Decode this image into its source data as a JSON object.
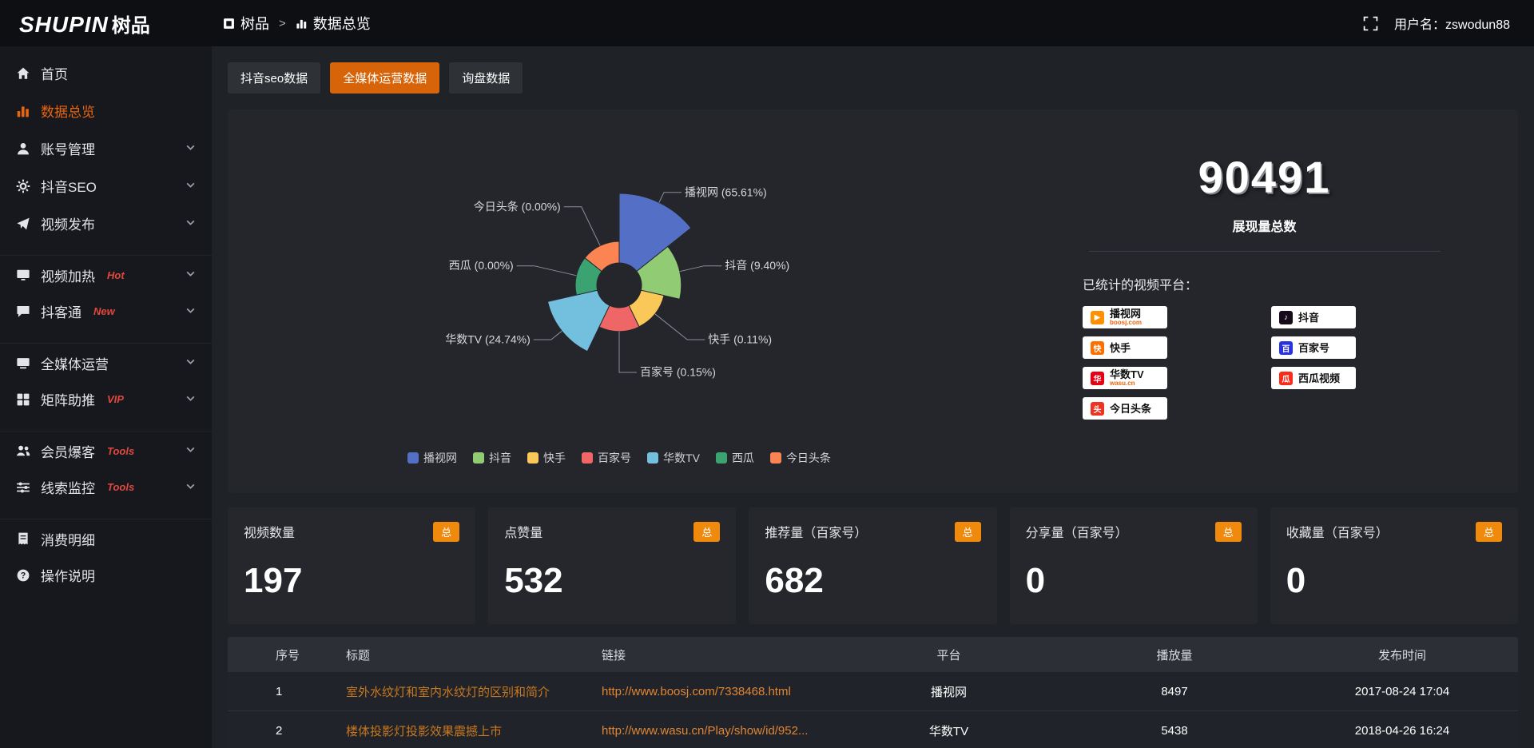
{
  "header": {
    "logo_en": "SHUPIN",
    "logo_cn": "树品",
    "breadcrumb_root": "树品",
    "breadcrumb_sep": ">",
    "breadcrumb_current": "数据总览",
    "username_label": "用户名：",
    "username_value": "zswodun88"
  },
  "sidebar": {
    "items": [
      {
        "label": "首页",
        "icon": "home"
      },
      {
        "label": "数据总览",
        "icon": "chart",
        "active": true
      },
      {
        "label": "账号管理",
        "icon": "user",
        "chevron": true
      },
      {
        "label": "抖音SEO",
        "icon": "gear",
        "chevron": true
      },
      {
        "label": "视频发布",
        "icon": "send",
        "chevron": true
      },
      {
        "label": "视频加热",
        "icon": "monitor",
        "tag": "Hot",
        "chevron": true,
        "break": true
      },
      {
        "label": "抖客通",
        "icon": "chat",
        "tag": "New",
        "chevron": true
      },
      {
        "label": "全媒体运营",
        "icon": "screen",
        "chevron": true,
        "break": true
      },
      {
        "label": "矩阵助推",
        "icon": "grid",
        "tag": "VIP",
        "chevron": true
      },
      {
        "label": "会员爆客",
        "icon": "users",
        "tag": "Tools",
        "chevron": true,
        "break": true
      },
      {
        "label": "线索监控",
        "icon": "sliders",
        "tag": "Tools",
        "chevron": true
      },
      {
        "label": "消费明细",
        "icon": "receipt",
        "break": true
      },
      {
        "label": "操作说明",
        "icon": "question"
      }
    ]
  },
  "tabs": [
    {
      "label": "抖音seo数据",
      "active": false
    },
    {
      "label": "全媒体运营数据",
      "active": true
    },
    {
      "label": "询盘数据",
      "active": false
    }
  ],
  "chart_data": {
    "type": "pie",
    "variant": "nightingale-rose",
    "categories": [
      "播视网",
      "抖音",
      "快手",
      "百家号",
      "华数TV",
      "西瓜",
      "今日头条"
    ],
    "values": [
      65.61,
      9.4,
      0.11,
      0.15,
      24.74,
      0.0,
      0.0
    ],
    "labels": [
      "播视网 (65.61%)",
      "抖音 (9.40%)",
      "快手 (0.11%)",
      "百家号 (0.15%)",
      "华数TV (24.74%)",
      "西瓜 (0.00%)",
      "今日头条 (0.00%)"
    ],
    "colors": [
      "#5470c6",
      "#91cc75",
      "#fac858",
      "#ee6666",
      "#73c0de",
      "#3ba272",
      "#fc8452"
    ],
    "legend": [
      "播视网",
      "抖音",
      "快手",
      "百家号",
      "华数TV",
      "西瓜",
      "今日头条"
    ],
    "legend_position": "bottom",
    "title": ""
  },
  "summary": {
    "total_value": "90491",
    "total_label": "展现量总数",
    "platforms_label": "已统计的视频平台：",
    "platforms": [
      {
        "name": "播视网",
        "sub": "boosj.com",
        "icon_color": "#ff9100",
        "glyph": "▶"
      },
      {
        "name": "快手",
        "icon_color": "#ff6f00",
        "glyph": "快"
      },
      {
        "name": "华数TV",
        "sub": "wasu.cn",
        "icon_color": "#e60012",
        "glyph": "华"
      },
      {
        "name": "今日头条",
        "icon_color": "#ed3321",
        "glyph": "头"
      },
      {
        "name": "抖音",
        "icon_color": "#170b1a",
        "glyph": "♪"
      },
      {
        "name": "百家号",
        "icon_color": "#2932e1",
        "glyph": "百"
      },
      {
        "name": "西瓜视频",
        "icon_color": "#fa2c19",
        "glyph": "瓜"
      }
    ]
  },
  "stat_cards": [
    {
      "title": "视频数量",
      "badge": "总",
      "value": "197"
    },
    {
      "title": "点赞量",
      "badge": "总",
      "value": "532"
    },
    {
      "title": "推荐量（百家号）",
      "badge": "总",
      "value": "682"
    },
    {
      "title": "分享量（百家号）",
      "badge": "总",
      "value": "0"
    },
    {
      "title": "收藏量（百家号）",
      "badge": "总",
      "value": "0"
    }
  ],
  "table": {
    "headers": [
      "序号",
      "标题",
      "链接",
      "平台",
      "播放量",
      "发布时间"
    ],
    "rows": [
      {
        "no": "1",
        "title": "室外水纹灯和室内水纹灯的区别和简介",
        "link": "http://www.boosj.com/7338468.html",
        "platform": "播视网",
        "plays": "8497",
        "time": "2017-08-24 17:04"
      },
      {
        "no": "2",
        "title": "楼体投影灯投影效果震撼上市",
        "link": "http://www.wasu.cn/Play/show/id/952...",
        "platform": "华数TV",
        "plays": "5438",
        "time": "2018-04-26 16:24"
      }
    ]
  },
  "colors": {
    "accent_orange": "#d8640a",
    "badge_orange": "#ef8a0d",
    "link_title_orange": "#c8781f",
    "link_url_orange": "#e08634",
    "tag_red": "#e0483e"
  }
}
